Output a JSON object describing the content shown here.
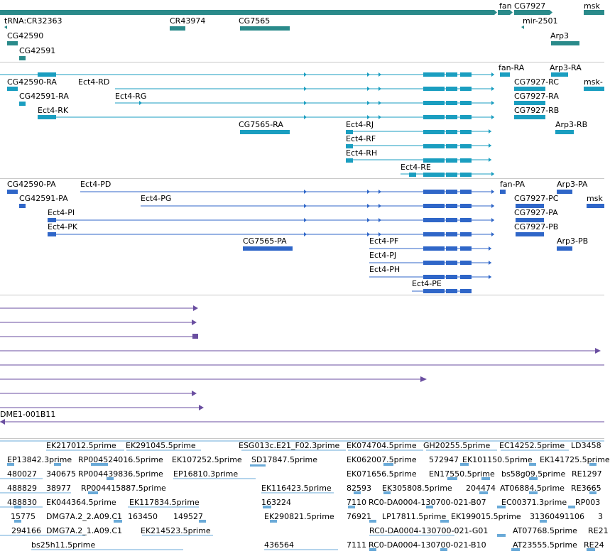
{
  "colors": {
    "gene_bar": "#2a8a8a",
    "transcript": "#1a9ec0",
    "protein": "#2f66c8",
    "cdna": "#6a4ea0",
    "est": "#6aaad8"
  },
  "tracks": {
    "genes": {
      "labels": [
        "tRNA:CR32363",
        "CR43974",
        "CG7565",
        "fan",
        "CG7927",
        "msk",
        "mir-2501",
        "CG42590",
        "Arp3",
        "CG42591"
      ]
    },
    "transcripts": {
      "labels": [
        "CG42590-RA",
        "Ect4-RD",
        "fan-RA",
        "Arp3-RA",
        "CG7927-RC",
        "msk-",
        "CG42591-RA",
        "Ect4-RG",
        "CG7927-RA",
        "Ect4-RK",
        "CG7927-RB",
        "CG7565-RA",
        "Ect4-RJ",
        "Arp3-RB",
        "Ect4-RF",
        "Ect4-RH",
        "Ect4-RE"
      ]
    },
    "proteins": {
      "labels": [
        "CG42590-PA",
        "Ect4-PD",
        "fan-PA",
        "Arp3-PA",
        "CG42591-PA",
        "Ect4-PG",
        "CG7927-PC",
        "msk",
        "Ect4-PI",
        "CG7927-PA",
        "Ect4-PK",
        "CG7927-PB",
        "CG7565-PA",
        "Ect4-PF",
        "Arp3-PB",
        "Ect4-PJ",
        "Ect4-PH",
        "Ect4-PE"
      ]
    },
    "cdna": {
      "labels": [
        "DME1-001B11"
      ]
    },
    "est": {
      "labels": [
        "EK217012.5prime",
        "EK291045.5prime",
        "ESG013c.E21_F02.3prime",
        "EK074704.5prime",
        "GH20255.5prime",
        "EC14252.5prime",
        "LD3458",
        "EP13842.3prime",
        "RP004524016.5prime",
        "EK107252.5prime",
        "SD17847.5prime",
        "EK062007.5prime",
        "572947",
        "EK101150.5prime",
        "EK141725.5prime",
        "480027",
        "340675",
        "RP004439836.5prime",
        "EP16810.3prime",
        "EK071656.5prime",
        "EN17550.5prime",
        "bs58g09.5prime",
        "RE1297",
        "488829",
        "38977",
        "RP004415887.5prime",
        "EK116423.5prime",
        "82593",
        "EK305808.5prime",
        "204474",
        "AT06884.5prime",
        "RE3665",
        "488830",
        "EK044364.5prime",
        "EK117834.5prime",
        "163224",
        "7110",
        "RC0-DA0004-130700-021-B07",
        "EC00371.3prime",
        "RP003",
        "15775",
        "DMG7A.2_2.A09.C1",
        "163450",
        "149527",
        "EK290821.5prime",
        "76921",
        "LP17811.5prime",
        "EK199015.5prime",
        "31360491106",
        "3",
        "294166",
        "DMG7A.2_1.A09.C1",
        "EK214523.5prime",
        "RC0-DA0004-130700-021-G01",
        "AT07768.5prime",
        "RE21",
        "bs25h11.5prime",
        "436564",
        "7111",
        "RC0-DA0004-130700-021-B10",
        "AT23555.5prime",
        "RE24"
      ]
    }
  }
}
